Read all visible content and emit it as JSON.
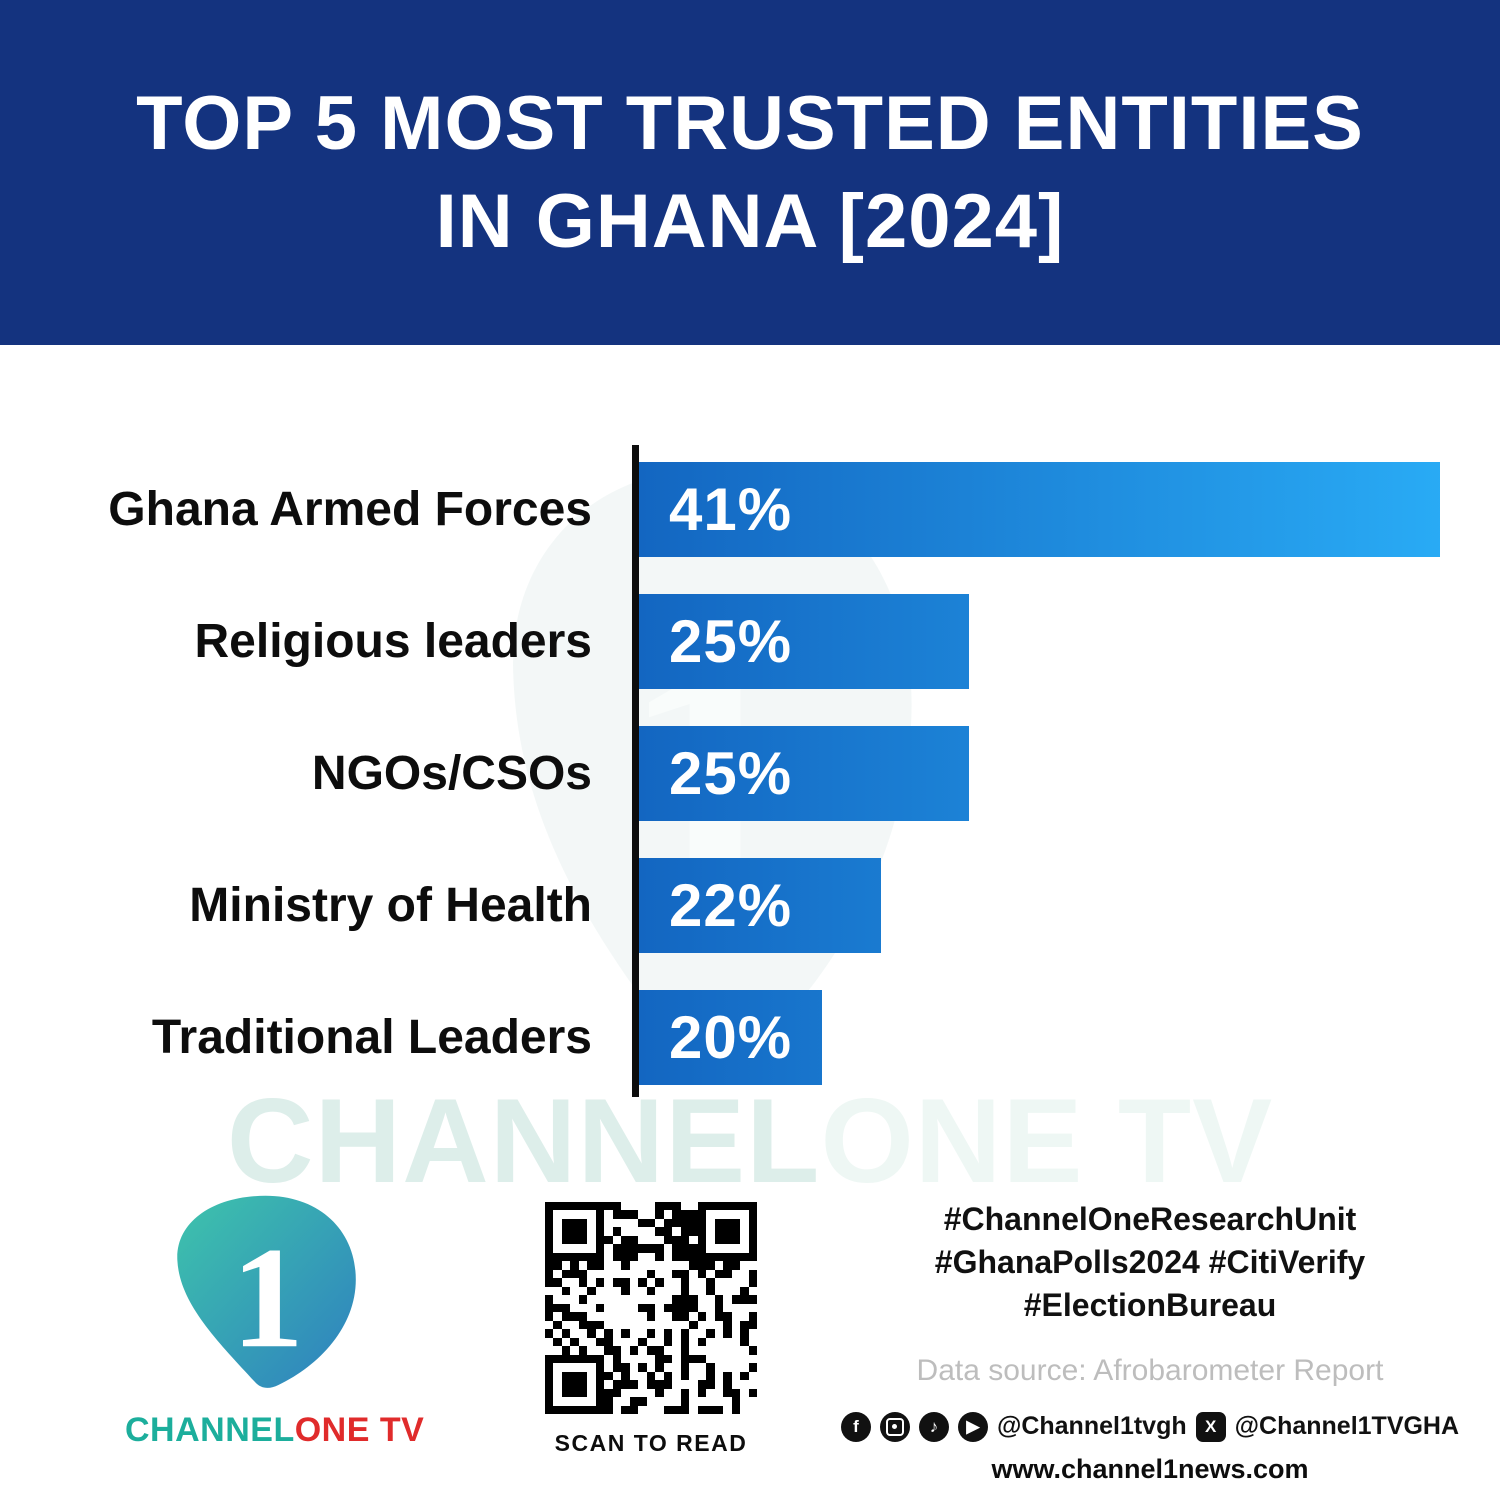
{
  "header": {
    "title_line1": "TOP 5 MOST TRUSTED ENTITIES",
    "title_line2": "IN GHANA [2024]",
    "bg_color": "#14337f",
    "text_color": "#ffffff"
  },
  "chart_data": {
    "type": "bar",
    "orientation": "horizontal",
    "title": "Top 5 Most Trusted Entities in Ghana [2024]",
    "categories": [
      "Ghana Armed Forces",
      "Religious leaders",
      "NGOs/CSOs",
      "Ministry of Health",
      "Traditional Leaders"
    ],
    "values": [
      41,
      25,
      25,
      22,
      20
    ],
    "value_labels": [
      "41%",
      "25%",
      "25%",
      "22%",
      "20%"
    ],
    "display_width_pct": [
      100,
      41.2,
      41.2,
      30.2,
      22.8
    ],
    "bar_color_start": "#1366c1",
    "bar_color_end": "#29abf5",
    "axis_color": "#0d0d0d",
    "grid": false,
    "legend": false,
    "note": "bar lengths as drawn in the source graphic are not to numeric scale"
  },
  "watermark": {
    "part1": "CHANNEL",
    "part2": "ONE TV"
  },
  "footer": {
    "logo": {
      "numeral": "1",
      "brand_part1": "CHANNEL",
      "brand_part2": "ONE TV"
    },
    "qr": {
      "caption": "SCAN TO READ"
    },
    "hashtags": [
      "#ChannelOneResearchUnit",
      "#GhanaPolls2024 #CitiVerify",
      "#ElectionBureau"
    ],
    "source": "Data source: Afrobarometer Report",
    "social": {
      "facebook_glyph": "f",
      "tiktok_glyph": "♪",
      "youtube_glyph": "▶",
      "x_glyph": "X",
      "handle1": "@Channel1tvgh",
      "handle2": "@Channel1TVGHA"
    },
    "website": "www.channel1news.com"
  },
  "colors": {
    "header_bg": "#14337f",
    "accent_teal": "#1cae9c",
    "brand_red": "#e02b2b",
    "watermark": "#e3f1ee",
    "source_gray": "#bdbdbd"
  }
}
